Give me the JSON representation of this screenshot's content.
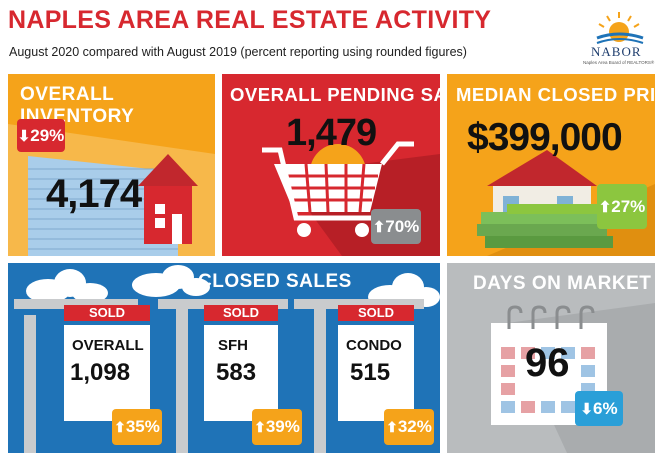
{
  "header": {
    "title": "NAPLES AREA REAL ESTATE ACTIVITY",
    "subtitle": "August 2020 compared with August 2019 (percent reporting using rounded figures)",
    "logo_text": "NABOR",
    "logo_subtext": "Naples Area Board of REALTORS®"
  },
  "panels": {
    "inventory": {
      "title": "OVERALL INVENTORY",
      "value": "4,174",
      "change": "29%",
      "direction": "down"
    },
    "pending": {
      "title": "OVERALL PENDING SALES",
      "value": "1,479",
      "change": "70%",
      "direction": "up"
    },
    "median": {
      "title": "MEDIAN CLOSED PRICE",
      "value": "$399,000",
      "change": "27%",
      "direction": "up"
    },
    "closed": {
      "title": "CLOSED SALES",
      "signs": [
        {
          "sold": "SOLD",
          "label": "OVERALL",
          "value": "1,098",
          "change": "35%"
        },
        {
          "sold": "SOLD",
          "label": "SFH",
          "value": "583",
          "change": "39%"
        },
        {
          "sold": "SOLD",
          "label": "CONDO",
          "value": "515",
          "change": "32%"
        }
      ]
    },
    "days": {
      "title": "DAYS ON MARKET",
      "value": "96",
      "change": "6%",
      "direction": "down"
    }
  },
  "colors": {
    "red": "#d7282f",
    "orange": "#f5a31a",
    "blue": "#1f73b7",
    "grey": "#b9bcbe",
    "green": "#8cc63f",
    "lightblue": "#2a9fd8"
  }
}
